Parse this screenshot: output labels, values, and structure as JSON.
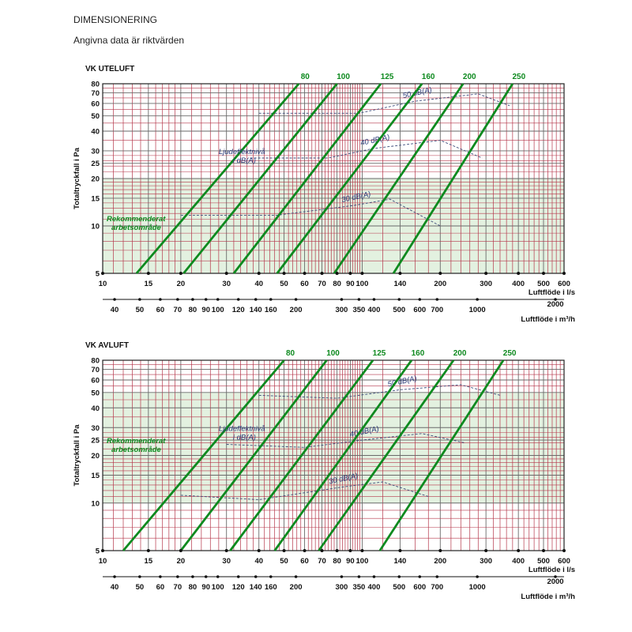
{
  "page": {
    "title": "DIMENSIONERING",
    "subtitle": "Angivna data är riktvärden"
  },
  "colors": {
    "duct_line": "#0e8a1f",
    "grid_red": "#b5364a",
    "grid_gray": "#6a6a6a",
    "recommended_fill": "#e3f1e0",
    "noise_line": "#3d4b7a",
    "recommended_text": "#0e8a1f",
    "noise_text": "#2b3a78"
  },
  "chart_data": [
    {
      "type": "line",
      "title": "VK UTELUFT",
      "ylabel": "Totaltryckfall i Pa",
      "xlabel": "Luftflöde i l/s",
      "x2label": "Luftflöde i m³/h",
      "xscale": "log",
      "yscale": "log",
      "xlim": [
        10,
        600
      ],
      "ylim": [
        5,
        80
      ],
      "x_ticks": [
        10,
        15,
        20,
        30,
        40,
        50,
        60,
        70,
        80,
        90,
        100,
        140,
        200,
        300,
        400,
        500,
        600
      ],
      "x_tick_labels": [
        "10",
        "15",
        "20",
        "30",
        "40",
        "50",
        "60",
        "70",
        "80",
        "90",
        "100",
        "140",
        "200",
        "300",
        "400",
        "500",
        "600"
      ],
      "y_ticks": [
        5,
        10,
        15,
        20,
        25,
        30,
        40,
        50,
        60,
        70,
        80
      ],
      "y_tick_labels": [
        "5",
        "10",
        "15",
        "20",
        "25",
        "30",
        "40",
        "50",
        "60",
        "70",
        "80"
      ],
      "m3h_ticks": [
        40,
        50,
        60,
        70,
        80,
        90,
        100,
        120,
        140,
        160,
        200,
        300,
        350,
        400,
        500,
        600,
        700,
        1000,
        2000
      ],
      "m3h_tick_labels": [
        "40",
        "50",
        "60",
        "70",
        "80",
        "90",
        "100",
        "120",
        "140",
        "160",
        "200",
        "300",
        "350",
        "400",
        "500",
        "600",
        "700",
        "1000",
        "2000"
      ],
      "recommended_area": {
        "label": [
          "Rekommenderat",
          "arbetsområde"
        ],
        "y_range": [
          5,
          20
        ]
      },
      "series": [
        {
          "name": "80",
          "x": [
            13.5,
            57
          ],
          "y": [
            5,
            80
          ]
        },
        {
          "name": "100",
          "x": [
            20.5,
            80
          ],
          "y": [
            5,
            80
          ]
        },
        {
          "name": "125",
          "x": [
            32,
            118
          ],
          "y": [
            5,
            80
          ]
        },
        {
          "name": "160",
          "x": [
            47,
            170
          ],
          "y": [
            5,
            80
          ]
        },
        {
          "name": "200",
          "x": [
            78,
            245
          ],
          "y": [
            5,
            80
          ]
        },
        {
          "name": "250",
          "x": [
            132,
            380
          ],
          "y": [
            5,
            80
          ]
        }
      ],
      "noise_curves": [
        {
          "name": "30 dB(A)",
          "x": [
            20,
            47,
            93,
            128,
            200
          ],
          "y": [
            11.7,
            11.7,
            13.5,
            14.8,
            10
          ]
        },
        {
          "name": "40 dB(A)",
          "x": [
            37,
            74,
            110,
            200,
            290
          ],
          "y": [
            27,
            27,
            31,
            35,
            27
          ]
        },
        {
          "name": "50 dB(A)",
          "x": [
            40,
            97,
            160,
            280,
            370
          ],
          "y": [
            52,
            52,
            62,
            69,
            58
          ]
        }
      ],
      "annotations": {
        "noise_label": [
          "Ljudeffektnivå",
          "i dB(A)"
        ]
      }
    },
    {
      "type": "line",
      "title": "VK AVLUFT",
      "ylabel": "Totaltryckfall i Pa",
      "xlabel": "Luftflöde i l/s",
      "x2label": "Luftflöde i m³/h",
      "xscale": "log",
      "yscale": "log",
      "xlim": [
        10,
        600
      ],
      "ylim": [
        5,
        80
      ],
      "x_ticks": [
        10,
        15,
        20,
        30,
        40,
        50,
        60,
        70,
        80,
        90,
        100,
        140,
        200,
        300,
        400,
        500,
        600
      ],
      "x_tick_labels": [
        "10",
        "15",
        "20",
        "30",
        "40",
        "50",
        "60",
        "70",
        "80",
        "90",
        "100",
        "140",
        "200",
        "300",
        "400",
        "500",
        "600"
      ],
      "y_ticks": [
        5,
        10,
        15,
        20,
        25,
        30,
        40,
        50,
        60,
        70,
        80
      ],
      "y_tick_labels": [
        "5",
        "10",
        "15",
        "20",
        "25",
        "30",
        "40",
        "50",
        "60",
        "70",
        "80"
      ],
      "m3h_ticks": [
        40,
        50,
        60,
        70,
        80,
        90,
        100,
        120,
        140,
        160,
        200,
        300,
        350,
        400,
        500,
        600,
        700,
        1000,
        2000
      ],
      "m3h_tick_labels": [
        "40",
        "50",
        "60",
        "70",
        "80",
        "90",
        "100",
        "120",
        "140",
        "160",
        "200",
        "300",
        "350",
        "400",
        "500",
        "600",
        "700",
        "1000",
        "2000"
      ],
      "recommended_area": {
        "label": [
          "Rekommenderat",
          "arbetsområde"
        ],
        "y_range": [
          10,
          50
        ]
      },
      "series": [
        {
          "name": "80",
          "x": [
            12,
            50
          ],
          "y": [
            5,
            80
          ]
        },
        {
          "name": "100",
          "x": [
            20,
            73
          ],
          "y": [
            5,
            80
          ]
        },
        {
          "name": "125",
          "x": [
            31,
            110
          ],
          "y": [
            5,
            80
          ]
        },
        {
          "name": "160",
          "x": [
            46,
            155
          ],
          "y": [
            5,
            80
          ]
        },
        {
          "name": "200",
          "x": [
            68,
            225
          ],
          "y": [
            5,
            80
          ]
        },
        {
          "name": "250",
          "x": [
            117,
            350
          ],
          "y": [
            5,
            80
          ]
        }
      ],
      "noise_curves": [
        {
          "name": "30 dB(A)",
          "x": [
            20,
            40,
            83,
            120,
            180
          ],
          "y": [
            11.2,
            10.5,
            12.6,
            13.6,
            11
          ]
        },
        {
          "name": "40 dB(A)",
          "x": [
            30,
            60,
            100,
            170,
            250
          ],
          "y": [
            23.5,
            22.5,
            25,
            27.5,
            24
          ]
        },
        {
          "name": "50 dB(A)",
          "x": [
            40,
            80,
            140,
            240,
            340
          ],
          "y": [
            48,
            46,
            52,
            56,
            48
          ]
        }
      ],
      "annotations": {
        "noise_label": [
          "Ljudeffektnivå",
          "i dB(A)"
        ]
      }
    }
  ]
}
